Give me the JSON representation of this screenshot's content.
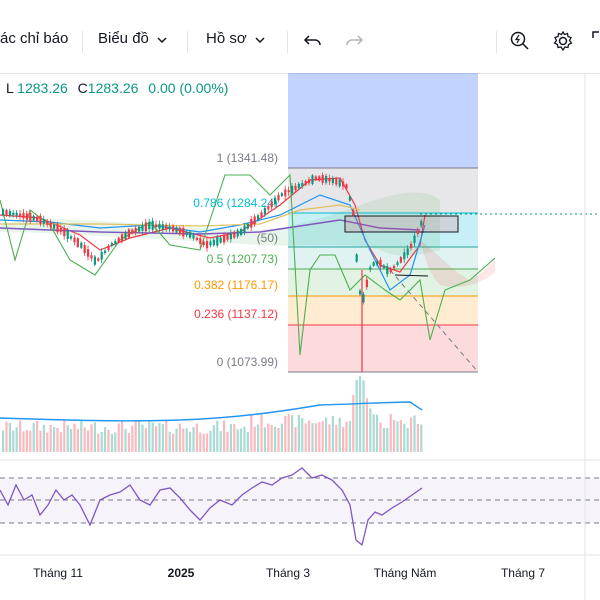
{
  "toolbar": {
    "indicators_label": "ác chỉ báo",
    "chart_label": "Biểu đồ",
    "profile_label": "Hồ sơ"
  },
  "ohlc": {
    "low_label": "L",
    "low_value": "1283.26",
    "close_label": "C",
    "close_value": "1283.26",
    "change": "0.00 (0.00%)"
  },
  "fib_levels": [
    {
      "ratio": "1",
      "value": "1341.48",
      "label": "1 (1341.48)",
      "color": "#787b86"
    },
    {
      "ratio": "0.786",
      "value": "1284.24",
      "label": "0.786 (1284.24)",
      "color": "#00bcd4"
    },
    {
      "ratio": "0.618",
      "value": "",
      "label": "",
      "color": "#787b86"
    },
    {
      "ratio": "0.5",
      "value": "1207.73",
      "label": "0.5 (1207.73)",
      "color": "#4caf50"
    },
    {
      "ratio": "0.382",
      "value": "1176.17",
      "label": "0.382 (1176.17)",
      "color": "#ff9800"
    },
    {
      "ratio": "0.236",
      "value": "1137.12",
      "label": "0.236 (1137.12)",
      "color": "#f23645"
    },
    {
      "ratio": "0",
      "value": "1073.99",
      "label": "0 (1073.99)",
      "color": "#787b86"
    }
  ],
  "partial_label": "(50)",
  "x_axis": [
    "Tháng 11",
    "2025",
    "Tháng 3",
    "Tháng Năm",
    "Tháng 7"
  ],
  "colors": {
    "up": "#089981",
    "down": "#f23645",
    "ichimoku_cloud_green": "#4caf50",
    "ichimoku_cloud_red": "#f23645",
    "volume_line": "#2196f3",
    "rsi_line": "#7e57c2",
    "forecast_box": "#2962ff"
  },
  "chart_data": {
    "type": "candlestick",
    "title": "",
    "fib_retracement": {
      "high": 1341.48,
      "low": 1073.99,
      "levels": [
        1,
        0.786,
        0.618,
        0.5,
        0.382,
        0.236,
        0
      ]
    },
    "last_close": 1283.26,
    "x_ticks": [
      "Tháng 11",
      "2025",
      "Tháng 3",
      "Tháng Năm",
      "Tháng 7"
    ],
    "panes": [
      "price",
      "volume",
      "rsi"
    ]
  }
}
